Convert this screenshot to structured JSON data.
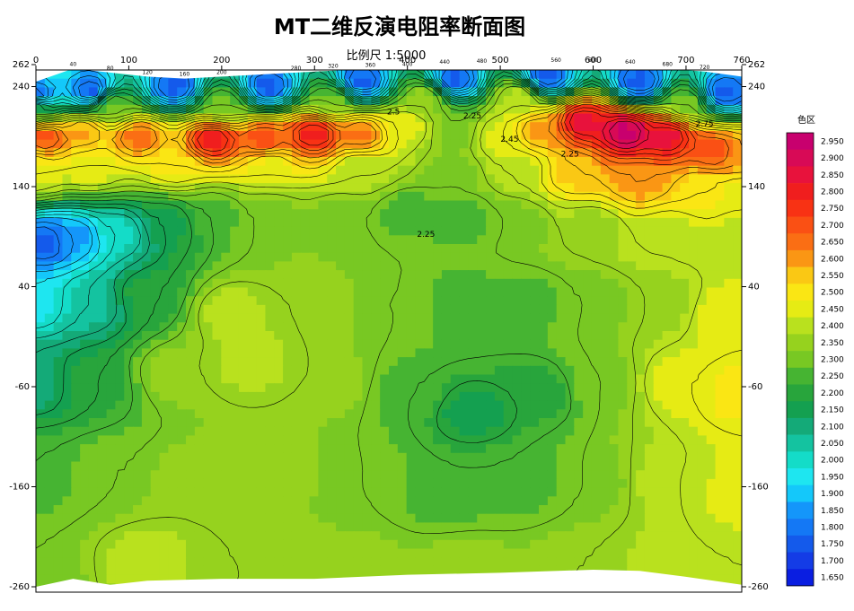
{
  "title": "MT二维反演电阻率断面图",
  "subtitle": "比例尺 1:5000",
  "legend_title": "色区",
  "chart_data": {
    "type": "heatmap",
    "x_ticks": [
      0,
      100,
      200,
      300,
      400,
      500,
      600,
      700,
      760
    ],
    "x_range": [
      0,
      760
    ],
    "y_ticks_left": [
      262,
      240,
      140,
      40,
      -60,
      -160,
      -260
    ],
    "y_ticks_left_labels": [
      "262",
      "240",
      "140",
      "40",
      "-60",
      "-160",
      "-260"
    ],
    "y_ticks_right": [
      262,
      240,
      140,
      40,
      -60,
      -160,
      -260
    ],
    "y_ticks_right_labels": [
      "262",
      "240",
      "140",
      "40",
      "-60",
      "-160",
      "-260"
    ],
    "y_range": [
      -260,
      262
    ],
    "surface_labels": [
      {
        "x": 40,
        "label": "40"
      },
      {
        "x": 80,
        "label": "80"
      },
      {
        "x": 120,
        "label": "120"
      },
      {
        "x": 160,
        "label": "160"
      },
      {
        "x": 200,
        "label": "200"
      },
      {
        "x": 280,
        "label": "280"
      },
      {
        "x": 320,
        "label": "320"
      },
      {
        "x": 360,
        "label": "360"
      },
      {
        "x": 400,
        "label": "400"
      },
      {
        "x": 440,
        "label": "440"
      },
      {
        "x": 480,
        "label": "480"
      },
      {
        "x": 560,
        "label": "560"
      },
      {
        "x": 600,
        "label": "600"
      },
      {
        "x": 640,
        "label": "640"
      },
      {
        "x": 680,
        "label": "680"
      },
      {
        "x": 720,
        "label": "720"
      }
    ],
    "contour_labels": [
      {
        "x": 385,
        "y": 212,
        "label": "2.5"
      },
      {
        "x": 470,
        "y": 208,
        "label": "2.25"
      },
      {
        "x": 575,
        "y": 170,
        "label": "2.25"
      },
      {
        "x": 420,
        "y": 90,
        "label": "2.25"
      },
      {
        "x": 510,
        "y": 185,
        "label": "2.45"
      },
      {
        "x": 720,
        "y": 200,
        "label": "2.75"
      }
    ],
    "legend": {
      "values": [
        "2.950",
        "2.900",
        "2.850",
        "2.800",
        "2.750",
        "2.700",
        "2.650",
        "2.600",
        "2.550",
        "2.500",
        "2.450",
        "2.400",
        "2.350",
        "2.300",
        "2.250",
        "2.200",
        "2.150",
        "2.100",
        "2.050",
        "2.000",
        "1.950",
        "1.900",
        "1.850",
        "1.800",
        "1.750",
        "1.700",
        "1.650"
      ],
      "colors": [
        "#c8006e",
        "#d80a56",
        "#e8123c",
        "#f01e1e",
        "#f83214",
        "#fa5014",
        "#fa6e14",
        "#fa9614",
        "#fac814",
        "#fae614",
        "#e6eb14",
        "#b9e11e",
        "#96d21e",
        "#78c823",
        "#46b432",
        "#28a53c",
        "#14a050",
        "#14aa78",
        "#14c3a0",
        "#14dcc8",
        "#1ee6f0",
        "#14c8fa",
        "#1496fa",
        "#1478f5",
        "#145aeb",
        "#143ce6",
        "#0a1ee1"
      ]
    },
    "cells": [
      {
        "x": 0,
        "y": 235,
        "v": 1.75
      },
      {
        "x": 60,
        "y": 240,
        "v": 1.75
      },
      {
        "x": 150,
        "y": 245,
        "v": 1.75
      },
      {
        "x": 250,
        "y": 245,
        "v": 1.75
      },
      {
        "x": 350,
        "y": 250,
        "v": 1.75
      },
      {
        "x": 450,
        "y": 252,
        "v": 1.75
      },
      {
        "x": 550,
        "y": 255,
        "v": 1.75
      },
      {
        "x": 650,
        "y": 250,
        "v": 1.75
      },
      {
        "x": 740,
        "y": 240,
        "v": 1.75
      },
      {
        "x": 0,
        "y": 225,
        "v": 2.2
      },
      {
        "x": 80,
        "y": 228,
        "v": 2.3
      },
      {
        "x": 200,
        "y": 228,
        "v": 2.3
      },
      {
        "x": 320,
        "y": 232,
        "v": 2.3
      },
      {
        "x": 420,
        "y": 235,
        "v": 2.35
      },
      {
        "x": 520,
        "y": 235,
        "v": 2.4
      },
      {
        "x": 700,
        "y": 230,
        "v": 2.3
      },
      {
        "x": 10,
        "y": 195,
        "v": 2.7
      },
      {
        "x": 50,
        "y": 200,
        "v": 2.6
      },
      {
        "x": 110,
        "y": 195,
        "v": 2.65
      },
      {
        "x": 190,
        "y": 192,
        "v": 2.8
      },
      {
        "x": 245,
        "y": 193,
        "v": 2.7
      },
      {
        "x": 300,
        "y": 198,
        "v": 2.8
      },
      {
        "x": 350,
        "y": 198,
        "v": 2.65
      },
      {
        "x": 400,
        "y": 205,
        "v": 2.45
      },
      {
        "x": 450,
        "y": 200,
        "v": 2.3
      },
      {
        "x": 500,
        "y": 195,
        "v": 2.45
      },
      {
        "x": 540,
        "y": 200,
        "v": 2.6
      },
      {
        "x": 590,
        "y": 210,
        "v": 2.85
      },
      {
        "x": 635,
        "y": 200,
        "v": 2.95
      },
      {
        "x": 680,
        "y": 195,
        "v": 2.85
      },
      {
        "x": 730,
        "y": 180,
        "v": 2.7
      },
      {
        "x": 760,
        "y": 175,
        "v": 2.6
      },
      {
        "x": 0,
        "y": 160,
        "v": 2.45
      },
      {
        "x": 60,
        "y": 165,
        "v": 2.45
      },
      {
        "x": 150,
        "y": 168,
        "v": 2.5
      },
      {
        "x": 250,
        "y": 165,
        "v": 2.45
      },
      {
        "x": 350,
        "y": 165,
        "v": 2.4
      },
      {
        "x": 450,
        "y": 160,
        "v": 2.3
      },
      {
        "x": 520,
        "y": 165,
        "v": 2.4
      },
      {
        "x": 580,
        "y": 160,
        "v": 2.55
      },
      {
        "x": 650,
        "y": 150,
        "v": 2.6
      },
      {
        "x": 720,
        "y": 145,
        "v": 2.5
      },
      {
        "x": 760,
        "y": 140,
        "v": 2.45
      },
      {
        "x": 10,
        "y": 90,
        "v": 1.75
      },
      {
        "x": 40,
        "y": 95,
        "v": 1.85
      },
      {
        "x": 90,
        "y": 100,
        "v": 2.0
      },
      {
        "x": 140,
        "y": 110,
        "v": 2.15
      },
      {
        "x": 190,
        "y": 120,
        "v": 2.25
      },
      {
        "x": 250,
        "y": 120,
        "v": 2.3
      },
      {
        "x": 330,
        "y": 115,
        "v": 2.3
      },
      {
        "x": 400,
        "y": 120,
        "v": 2.25
      },
      {
        "x": 460,
        "y": 115,
        "v": 2.25
      },
      {
        "x": 520,
        "y": 110,
        "v": 2.3
      },
      {
        "x": 600,
        "y": 105,
        "v": 2.35
      },
      {
        "x": 680,
        "y": 100,
        "v": 2.4
      },
      {
        "x": 760,
        "y": 95,
        "v": 2.4
      },
      {
        "x": 0,
        "y": 30,
        "v": 1.95
      },
      {
        "x": 60,
        "y": 30,
        "v": 2.05
      },
      {
        "x": 120,
        "y": 35,
        "v": 2.2
      },
      {
        "x": 210,
        "y": 20,
        "v": 2.4
      },
      {
        "x": 300,
        "y": 30,
        "v": 2.35
      },
      {
        "x": 380,
        "y": 30,
        "v": 2.3
      },
      {
        "x": 460,
        "y": 30,
        "v": 2.25
      },
      {
        "x": 530,
        "y": 30,
        "v": 2.25
      },
      {
        "x": 600,
        "y": 30,
        "v": 2.3
      },
      {
        "x": 680,
        "y": 30,
        "v": 2.35
      },
      {
        "x": 740,
        "y": 20,
        "v": 2.45
      },
      {
        "x": 0,
        "y": -50,
        "v": 2.1
      },
      {
        "x": 60,
        "y": -50,
        "v": 2.2
      },
      {
        "x": 150,
        "y": -40,
        "v": 2.35
      },
      {
        "x": 230,
        "y": -30,
        "v": 2.4
      },
      {
        "x": 320,
        "y": -50,
        "v": 2.35
      },
      {
        "x": 400,
        "y": -60,
        "v": 2.25
      },
      {
        "x": 470,
        "y": -80,
        "v": 2.15
      },
      {
        "x": 540,
        "y": -60,
        "v": 2.2
      },
      {
        "x": 610,
        "y": -50,
        "v": 2.3
      },
      {
        "x": 690,
        "y": -50,
        "v": 2.45
      },
      {
        "x": 760,
        "y": -60,
        "v": 2.5
      },
      {
        "x": 0,
        "y": -140,
        "v": 2.25
      },
      {
        "x": 80,
        "y": -140,
        "v": 2.3
      },
      {
        "x": 170,
        "y": -150,
        "v": 2.35
      },
      {
        "x": 260,
        "y": -140,
        "v": 2.35
      },
      {
        "x": 350,
        "y": -150,
        "v": 2.3
      },
      {
        "x": 440,
        "y": -160,
        "v": 2.25
      },
      {
        "x": 520,
        "y": -150,
        "v": 2.25
      },
      {
        "x": 600,
        "y": -150,
        "v": 2.3
      },
      {
        "x": 680,
        "y": -150,
        "v": 2.4
      },
      {
        "x": 760,
        "y": -160,
        "v": 2.45
      },
      {
        "x": 0,
        "y": -240,
        "v": 2.3
      },
      {
        "x": 120,
        "y": -230,
        "v": 2.4
      },
      {
        "x": 220,
        "y": -240,
        "v": 2.35
      },
      {
        "x": 340,
        "y": -240,
        "v": 2.35
      },
      {
        "x": 460,
        "y": -240,
        "v": 2.35
      },
      {
        "x": 580,
        "y": -240,
        "v": 2.35
      },
      {
        "x": 680,
        "y": -240,
        "v": 2.4
      },
      {
        "x": 760,
        "y": -250,
        "v": 2.4
      }
    ],
    "topography": [
      {
        "x": 0,
        "y": 245
      },
      {
        "x": 40,
        "y": 258
      },
      {
        "x": 80,
        "y": 254
      },
      {
        "x": 120,
        "y": 250
      },
      {
        "x": 160,
        "y": 248
      },
      {
        "x": 200,
        "y": 250
      },
      {
        "x": 240,
        "y": 252
      },
      {
        "x": 280,
        "y": 254
      },
      {
        "x": 320,
        "y": 256
      },
      {
        "x": 360,
        "y": 257
      },
      {
        "x": 400,
        "y": 258
      },
      {
        "x": 440,
        "y": 260
      },
      {
        "x": 480,
        "y": 261
      },
      {
        "x": 520,
        "y": 261
      },
      {
        "x": 560,
        "y": 262
      },
      {
        "x": 600,
        "y": 262
      },
      {
        "x": 640,
        "y": 260
      },
      {
        "x": 680,
        "y": 258
      },
      {
        "x": 720,
        "y": 255
      },
      {
        "x": 760,
        "y": 250
      }
    ],
    "bottom_profile": [
      {
        "x": 0,
        "y": -260
      },
      {
        "x": 40,
        "y": -252
      },
      {
        "x": 80,
        "y": -258
      },
      {
        "x": 120,
        "y": -254
      },
      {
        "x": 200,
        "y": -252
      },
      {
        "x": 300,
        "y": -252
      },
      {
        "x": 400,
        "y": -248
      },
      {
        "x": 500,
        "y": -246
      },
      {
        "x": 600,
        "y": -243
      },
      {
        "x": 650,
        "y": -244
      },
      {
        "x": 700,
        "y": -250
      },
      {
        "x": 760,
        "y": -258
      }
    ]
  }
}
